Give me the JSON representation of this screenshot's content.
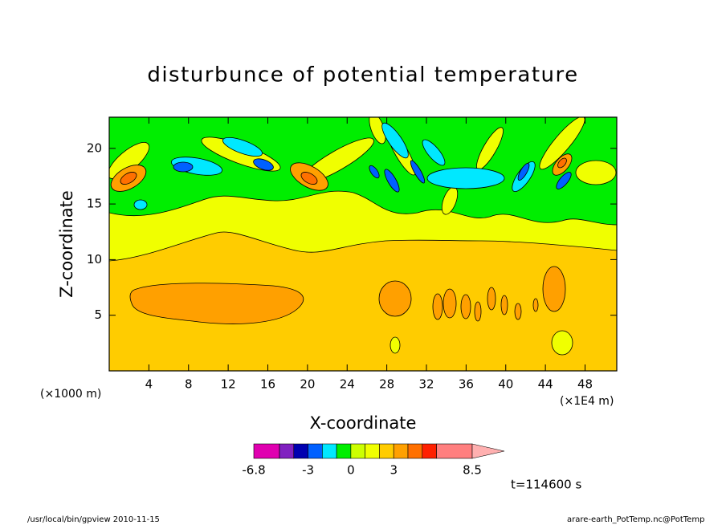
{
  "chart_data": {
    "type": "contour",
    "title": "disturbunce of potential temperature",
    "xlabel": "X-coordinate",
    "ylabel": "Z-coordinate",
    "xlim": [
      0,
      51.2
    ],
    "ylim": [
      0,
      22.8
    ],
    "xticks": [
      4,
      8,
      12,
      16,
      20,
      24,
      28,
      32,
      36,
      40,
      44,
      48
    ],
    "yticks": [
      5,
      10,
      15,
      20
    ],
    "levels": [
      -6.8,
      -5,
      -4,
      -3,
      -2,
      -1,
      0,
      1,
      2,
      3,
      4,
      5,
      6,
      8.5
    ],
    "colors": [
      "#e000b0",
      "#8020c0",
      "#0000b0",
      "#0060ff",
      "#00e8ff",
      "#00ee00",
      "#ccff00",
      "#f0ff00",
      "#ffcc00",
      "#ffa000",
      "#ff7000",
      "#ff2000",
      "#ff7f7f"
    ],
    "extend_color": "#ffb0b0",
    "colorbar_ticks": [
      -6.8,
      -3,
      0,
      3,
      8.5
    ],
    "annotations": [
      "(×1000 m)",
      "(×1E4 m)",
      "t=114600 s",
      "/usr/local/bin/gpview  2010-11-15",
      "arare-earth_PotTemp.nc@PotTemp"
    ]
  }
}
